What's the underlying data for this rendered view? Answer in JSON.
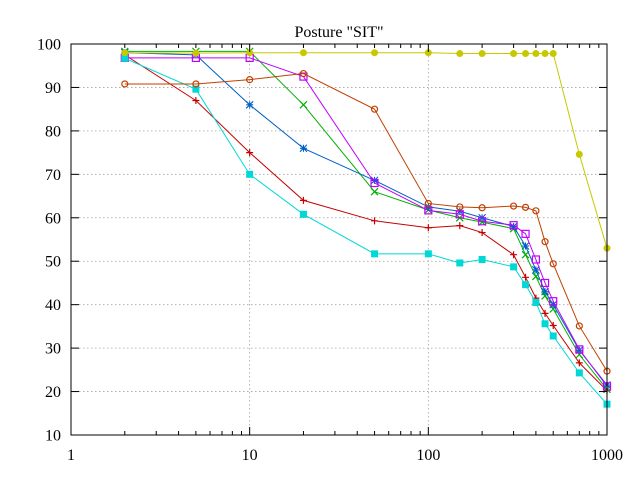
{
  "chart_data": {
    "type": "line",
    "title": "Posture \"SIT\"",
    "xlabel": "",
    "ylabel": "",
    "xscale": "log",
    "xlim": [
      1,
      1000
    ],
    "ylim": [
      10,
      100
    ],
    "xticks": [
      1,
      10,
      100,
      1000
    ],
    "xtick_labels": [
      "1",
      "10",
      "100",
      "1000"
    ],
    "yticks": [
      10,
      20,
      30,
      40,
      50,
      60,
      70,
      80,
      90,
      100
    ],
    "ytick_labels": [
      "10",
      "20",
      "30",
      "40",
      "50",
      "60",
      "70",
      "80",
      "90",
      "100"
    ],
    "grid": true,
    "legend": "none",
    "series": [
      {
        "color": "#c80000",
        "marker": "plus",
        "x": [
          2,
          5,
          10,
          20,
          50,
          100,
          150,
          200,
          300,
          350,
          400,
          450,
          500,
          700,
          1000
        ],
        "y": [
          97.5,
          87,
          75,
          64,
          59.3,
          57.7,
          58.2,
          56.6,
          51.5,
          46.3,
          41.5,
          38,
          35.2,
          26.6,
          20.2
        ]
      },
      {
        "color": "#00b000",
        "marker": "cross",
        "x": [
          2,
          5,
          10,
          20,
          50,
          100,
          150,
          200,
          300,
          350,
          400,
          450,
          500,
          700,
          1000
        ],
        "y": [
          98.3,
          98.3,
          98.3,
          86,
          66,
          61.8,
          60,
          59,
          57.5,
          51.5,
          46.5,
          42,
          39,
          28.5,
          20.5
        ]
      },
      {
        "color": "#0060c8",
        "marker": "star",
        "x": [
          2,
          5,
          10,
          20,
          50,
          100,
          150,
          200,
          300,
          350,
          400,
          450,
          500,
          700,
          1000
        ],
        "y": [
          98,
          97.5,
          86,
          76,
          68.6,
          62.5,
          61.5,
          60,
          58,
          53.5,
          48,
          43,
          40,
          29.5,
          21.5
        ]
      },
      {
        "color": "#c000ff",
        "marker": "open-square",
        "x": [
          2,
          5,
          10,
          20,
          50,
          100,
          150,
          200,
          300,
          350,
          400,
          450,
          500,
          700,
          1000
        ],
        "y": [
          96.8,
          96.8,
          96.8,
          92.5,
          68,
          61.7,
          60.8,
          59.2,
          58.3,
          56.3,
          50.4,
          45,
          40.8,
          29.7,
          21.2
        ]
      },
      {
        "color": "#00d8d8",
        "marker": "filled-square",
        "x": [
          2,
          5,
          10,
          20,
          50,
          100,
          150,
          200,
          300,
          350,
          400,
          450,
          500,
          700,
          1000
        ],
        "y": [
          96.7,
          89.6,
          70,
          60.8,
          51.7,
          51.7,
          49.6,
          50.4,
          48.7,
          44.6,
          40.5,
          35.6,
          32.8,
          24.3,
          17.1
        ]
      },
      {
        "color": "#c8c800",
        "marker": "filled-circle",
        "x": [
          2,
          5,
          10,
          20,
          50,
          100,
          150,
          200,
          300,
          350,
          400,
          450,
          500,
          700,
          1000
        ],
        "y": [
          98,
          97.9,
          98,
          98,
          98,
          98,
          97.8,
          97.8,
          97.8,
          97.8,
          97.8,
          97.8,
          97.8,
          74.6,
          53
        ]
      },
      {
        "color": "#c04000",
        "marker": "open-circle",
        "x": [
          2,
          5,
          10,
          20,
          50,
          100,
          150,
          200,
          300,
          350,
          400,
          450,
          500,
          700,
          1000
        ],
        "y": [
          90.8,
          90.8,
          91.8,
          93.2,
          85,
          63.3,
          62.5,
          62.3,
          62.7,
          62.4,
          61.6,
          54.5,
          49.4,
          35.1,
          24.7
        ]
      }
    ]
  }
}
